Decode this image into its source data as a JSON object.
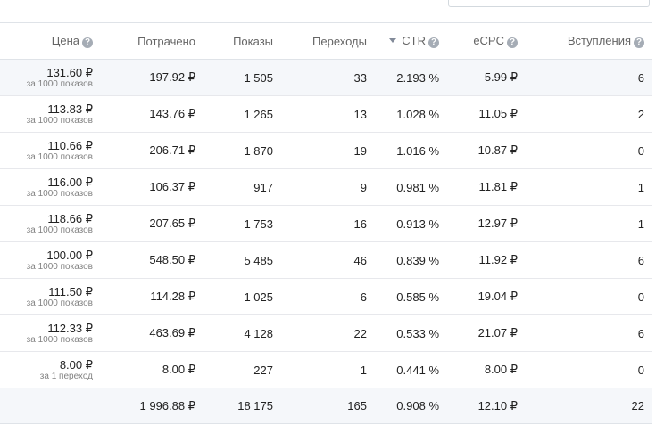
{
  "headers": {
    "price": "Цена",
    "spent": "Потрачено",
    "shows": "Показы",
    "clicks": "Переходы",
    "ctr": "CTR",
    "ecpc": "eCPC",
    "joins": "Вступления",
    "help_icon": "?"
  },
  "rows": [
    {
      "price": "131.60 ₽",
      "price_unit": "за 1000 показов",
      "spent": "197.92 ₽",
      "shows": "1 505",
      "clicks": "33",
      "ctr": "2.193 %",
      "ecpc": "5.99 ₽",
      "joins": "6"
    },
    {
      "price": "113.83 ₽",
      "price_unit": "за 1000 показов",
      "spent": "143.76 ₽",
      "shows": "1 265",
      "clicks": "13",
      "ctr": "1.028 %",
      "ecpc": "11.05 ₽",
      "joins": "2"
    },
    {
      "price": "110.66 ₽",
      "price_unit": "за 1000 показов",
      "spent": "206.71 ₽",
      "shows": "1 870",
      "clicks": "19",
      "ctr": "1.016 %",
      "ecpc": "10.87 ₽",
      "joins": "0"
    },
    {
      "price": "116.00 ₽",
      "price_unit": "за 1000 показов",
      "spent": "106.37 ₽",
      "shows": "917",
      "clicks": "9",
      "ctr": "0.981 %",
      "ecpc": "11.81 ₽",
      "joins": "1"
    },
    {
      "price": "118.66 ₽",
      "price_unit": "за 1000 показов",
      "spent": "207.65 ₽",
      "shows": "1 753",
      "clicks": "16",
      "ctr": "0.913 %",
      "ecpc": "12.97 ₽",
      "joins": "1"
    },
    {
      "price": "100.00 ₽",
      "price_unit": "за 1000 показов",
      "spent": "548.50 ₽",
      "shows": "5 485",
      "clicks": "46",
      "ctr": "0.839 %",
      "ecpc": "11.92 ₽",
      "joins": "6"
    },
    {
      "price": "111.50 ₽",
      "price_unit": "за 1000 показов",
      "spent": "114.28 ₽",
      "shows": "1 025",
      "clicks": "6",
      "ctr": "0.585 %",
      "ecpc": "19.04 ₽",
      "joins": "0"
    },
    {
      "price": "112.33 ₽",
      "price_unit": "за 1000 показов",
      "spent": "463.69 ₽",
      "shows": "4 128",
      "clicks": "22",
      "ctr": "0.533 %",
      "ecpc": "21.07 ₽",
      "joins": "6"
    },
    {
      "price": "8.00 ₽",
      "price_unit": "за 1 переход",
      "spent": "8.00 ₽",
      "shows": "227",
      "clicks": "1",
      "ctr": "0.441 %",
      "ecpc": "8.00 ₽",
      "joins": "0"
    }
  ],
  "totals": {
    "price": "",
    "spent": "1 996.88 ₽",
    "shows": "18 175",
    "clicks": "165",
    "ctr": "0.908 %",
    "ecpc": "12.10 ₽",
    "joins": "22"
  }
}
